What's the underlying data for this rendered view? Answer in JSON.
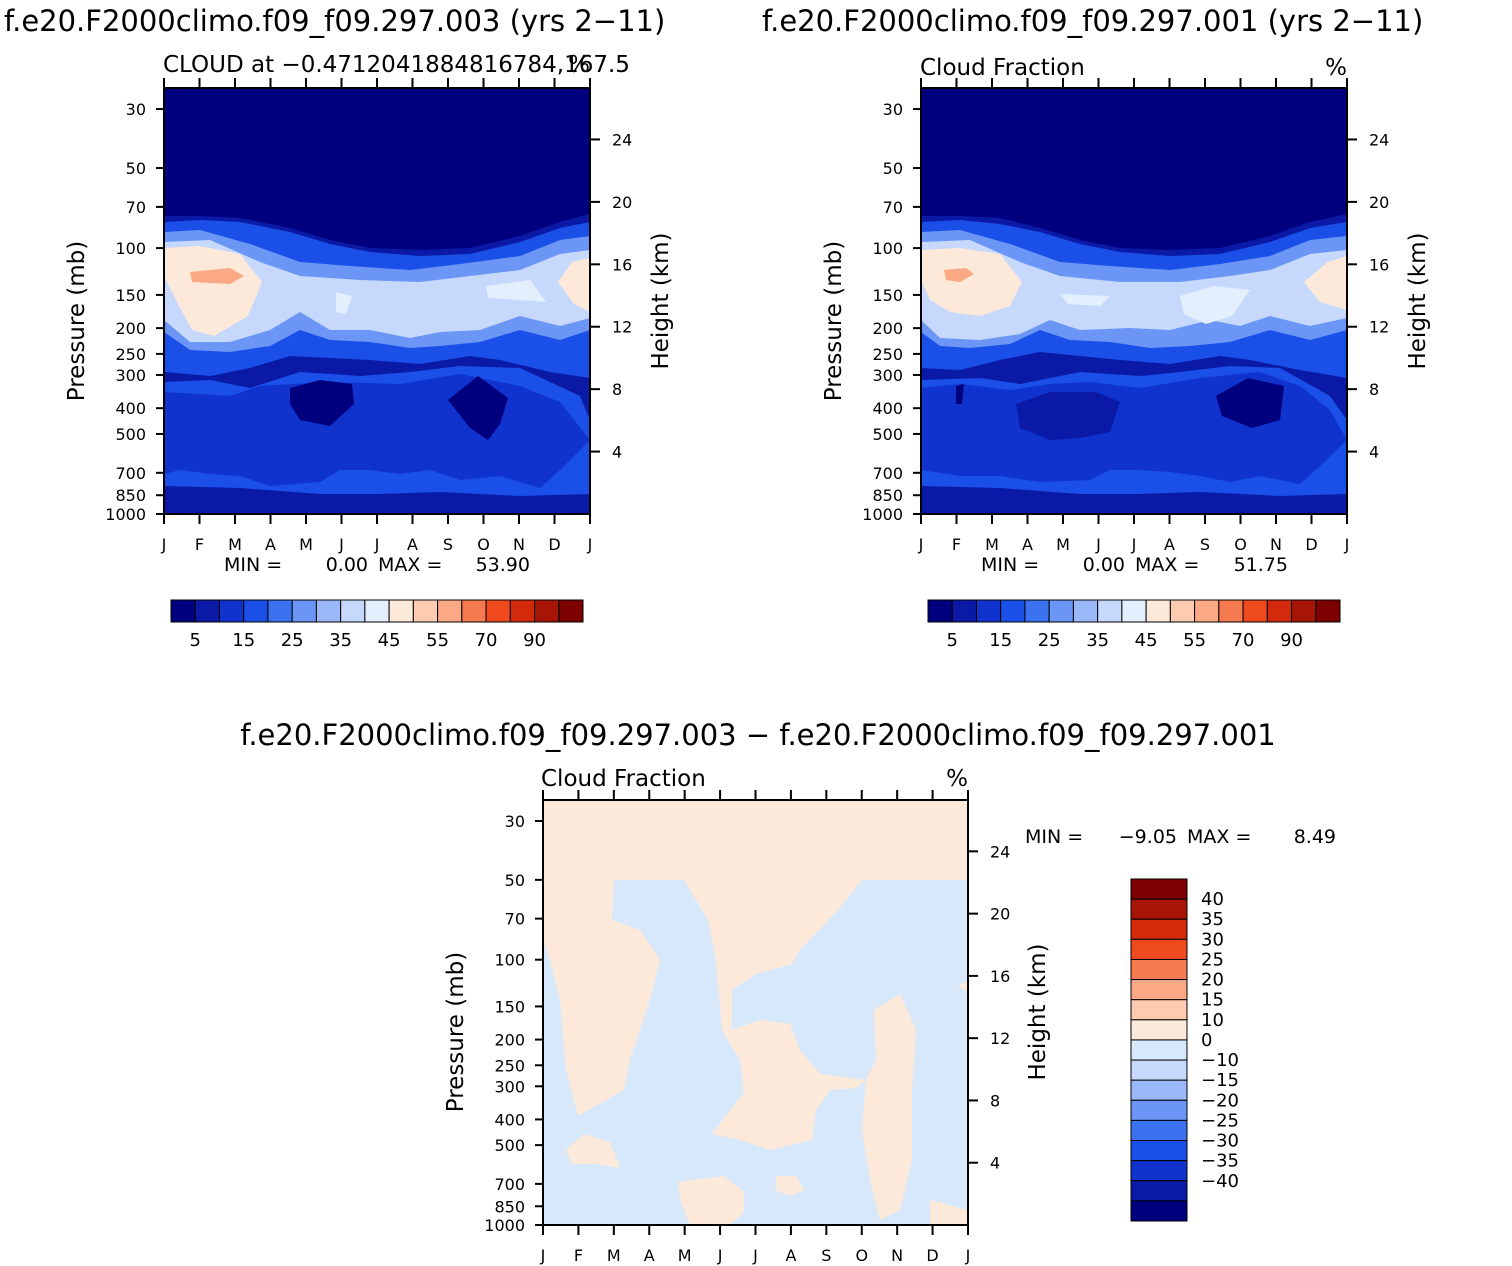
{
  "page": {
    "title_left": "f.e20.F2000climo.f09_f09.297.003 (yrs 2−11)",
    "title_right": "f.e20.F2000climo.f09_f09.297.001 (yrs 2−11)",
    "title_diff": "f.e20.F2000climo.f09_f09.297.003 − f.e20.F2000climo.f09_f09.297.001"
  },
  "colors": {
    "abs_scale": [
      "#00007f",
      "#0a1aa6",
      "#0f33cc",
      "#1a4fe8",
      "#3b72f0",
      "#6b96f5",
      "#9bb9fa",
      "#c6d9fc",
      "#e4effd",
      "#fde9d9",
      "#fccbb0",
      "#fba884",
      "#f67a4f",
      "#ef4a1e",
      "#d42a0c",
      "#a71507",
      "#7c0000"
    ],
    "diff_scale": [
      "#00007f",
      "#0a1aa6",
      "#0f33cc",
      "#1a4fe8",
      "#3b72f0",
      "#6b96f5",
      "#9bb9fa",
      "#c6d9fc",
      "#d7e8fb",
      "#fde9d9",
      "#fccbb0",
      "#fba884",
      "#f67a4f",
      "#ef4a1e",
      "#d42a0c",
      "#a71507",
      "#7c0000"
    ]
  },
  "chart_data": [
    {
      "type": "heatmap",
      "id": "case003",
      "title_left": "CLOUD at −0.4712041884816784,167.5",
      "title_right": "%",
      "xlabel": "",
      "ylabel": "Pressure (mb)",
      "ylabel_right": "Height (km)",
      "x_ticks": [
        "J",
        "F",
        "M",
        "A",
        "M",
        "J",
        "J",
        "A",
        "S",
        "O",
        "N",
        "D",
        "J"
      ],
      "y_ticks": [
        30,
        50,
        70,
        100,
        150,
        200,
        250,
        300,
        400,
        500,
        700,
        850,
        1000
      ],
      "y_ticks_right": [
        24,
        20,
        16,
        12,
        8,
        4
      ],
      "ylim": [
        1000,
        25
      ],
      "stats": {
        "min_label": "MIN =",
        "min": "0.00",
        "max_label": "MAX =",
        "max": "53.90"
      },
      "colorbar_labels": [
        "5",
        "15",
        "25",
        "35",
        "45",
        "55",
        "70",
        "90"
      ],
      "colorbar_levels": [
        5,
        10,
        15,
        20,
        25,
        30,
        35,
        40,
        45,
        50,
        55,
        60,
        70,
        80,
        90,
        100
      ]
    },
    {
      "type": "heatmap",
      "id": "case001",
      "title_left": "Cloud Fraction",
      "title_right": "%",
      "xlabel": "",
      "ylabel": "Pressure (mb)",
      "ylabel_right": "Height (km)",
      "x_ticks": [
        "J",
        "F",
        "M",
        "A",
        "M",
        "J",
        "J",
        "A",
        "S",
        "O",
        "N",
        "D",
        "J"
      ],
      "y_ticks": [
        30,
        50,
        70,
        100,
        150,
        200,
        250,
        300,
        400,
        500,
        700,
        850,
        1000
      ],
      "y_ticks_right": [
        24,
        20,
        16,
        12,
        8,
        4
      ],
      "ylim": [
        1000,
        25
      ],
      "stats": {
        "min_label": "MIN =",
        "min": "0.00",
        "max_label": "MAX =",
        "max": "51.75"
      },
      "colorbar_labels": [
        "5",
        "15",
        "25",
        "35",
        "45",
        "55",
        "70",
        "90"
      ],
      "colorbar_levels": [
        5,
        10,
        15,
        20,
        25,
        30,
        35,
        40,
        45,
        50,
        55,
        60,
        70,
        80,
        90,
        100
      ]
    },
    {
      "type": "heatmap",
      "id": "difference",
      "title_left": "Cloud Fraction",
      "title_right": "%",
      "xlabel": "",
      "ylabel": "Pressure (mb)",
      "ylabel_right": "Height (km)",
      "x_ticks": [
        "J",
        "F",
        "M",
        "A",
        "M",
        "J",
        "J",
        "A",
        "S",
        "O",
        "N",
        "D",
        "J"
      ],
      "y_ticks": [
        30,
        50,
        70,
        100,
        150,
        200,
        250,
        300,
        400,
        500,
        700,
        850,
        1000
      ],
      "y_ticks_right": [
        24,
        20,
        16,
        12,
        8,
        4
      ],
      "ylim": [
        1000,
        25
      ],
      "stats": {
        "min_label": "MIN =",
        "min": "−9.05",
        "max_label": "MAX =",
        "max": "8.49"
      },
      "colorbar_labels": [
        "40",
        "35",
        "30",
        "25",
        "20",
        "15",
        "10",
        "0",
        "−10",
        "−15",
        "−20",
        "−25",
        "−30",
        "−35",
        "−40"
      ],
      "colorbar_levels": [
        40,
        35,
        30,
        25,
        20,
        15,
        10,
        0,
        -10,
        -15,
        -20,
        -25,
        -30,
        -35,
        -40
      ]
    }
  ]
}
